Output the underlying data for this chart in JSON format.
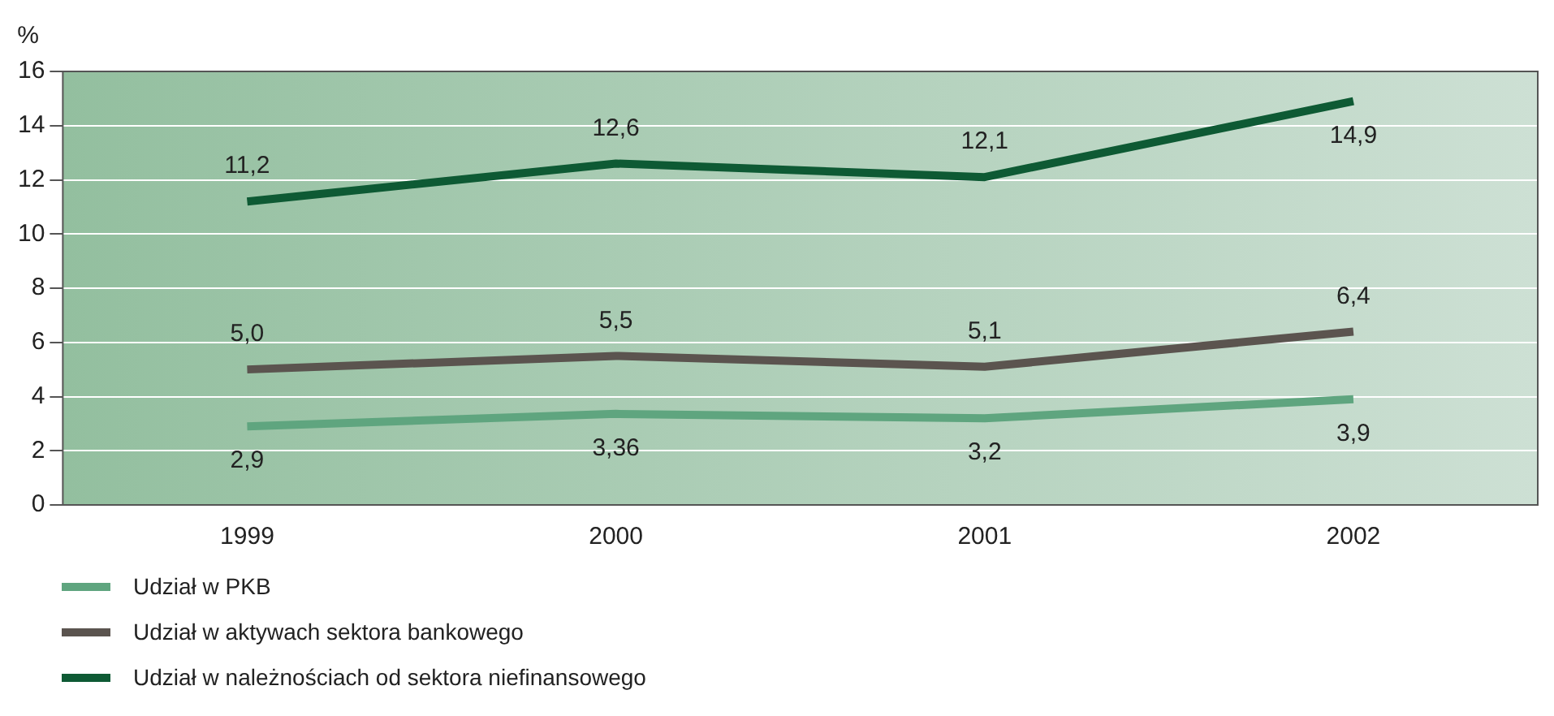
{
  "chart_data": {
    "type": "line",
    "ylabel": "%",
    "categories": [
      "1999",
      "2000",
      "2001",
      "2002"
    ],
    "ylim": [
      0,
      16
    ],
    "yticks": [
      0,
      2,
      4,
      6,
      8,
      10,
      12,
      14,
      16
    ],
    "grid": "y",
    "legend": "bottom left",
    "marker": "none",
    "line_style": "solid",
    "series": [
      {
        "name": "Udział w PKB",
        "color": "#5fa57f",
        "values": [
          2.9,
          3.36,
          3.2,
          3.9
        ],
        "value_labels": [
          "2,9",
          "3,36",
          "3,2",
          "3,9"
        ]
      },
      {
        "name": "Udział w aktywach sektora bankowego",
        "color": "#5b544f",
        "values": [
          5.0,
          5.5,
          5.1,
          6.4
        ],
        "value_labels": [
          "5,0",
          "5,5",
          "5,1",
          "6,4"
        ]
      },
      {
        "name": "Udział w należnościach od sektora niefinansowego",
        "color": "#0e5a34",
        "values": [
          11.2,
          12.6,
          12.1,
          14.9
        ],
        "value_labels": [
          "11,2",
          "12,6",
          "12,1",
          "14,9"
        ]
      }
    ]
  }
}
